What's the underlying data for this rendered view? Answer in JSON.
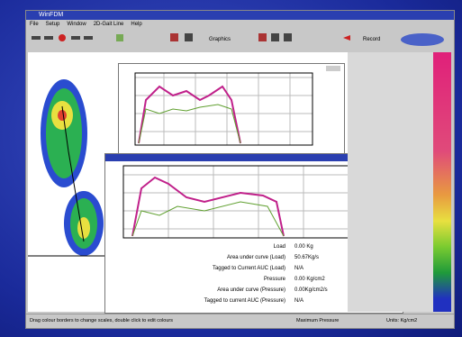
{
  "window": {
    "title": "WinFDM"
  },
  "menu": [
    "File",
    "Setup",
    "Window",
    "2D-Gait Line",
    "Help"
  ],
  "toolbar": {
    "graphics": "Graphics",
    "record": "Record"
  },
  "stats": [
    {
      "label": "Load",
      "value": "0.00 Kg"
    },
    {
      "label": "Area under curve (Load)",
      "value": "50.67Kg/s"
    },
    {
      "label": "Tagged to Current AUC (Load)",
      "value": "N/A"
    },
    {
      "label": "Pressure",
      "value": "0.00 Kg/cm2"
    },
    {
      "label": "Area under curve (Pressure)",
      "value": "0.00Kg/cm2/s"
    },
    {
      "label": "Tagged to current AUC (Pressure)",
      "value": "N/A"
    }
  ],
  "status": [
    "Drag colour borders to change scales, double click to edit colours",
    "Maximum Pressure",
    "Units: Kg/cm2"
  ]
}
